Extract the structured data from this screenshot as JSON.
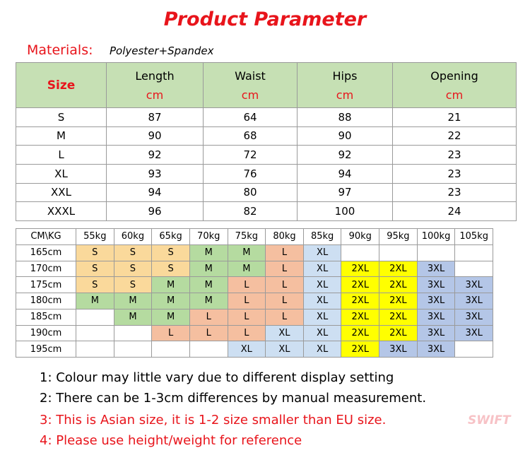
{
  "title": "Product Parameter",
  "materials": {
    "label": "Materials:",
    "value": "Polyester+Spandex"
  },
  "table": {
    "header": [
      "Size",
      "Length",
      "Waist",
      "Hips",
      "Opening"
    ],
    "unit": "cm",
    "rows": [
      [
        "S",
        87,
        64,
        88,
        21
      ],
      [
        "M",
        90,
        68,
        90,
        22
      ],
      [
        "L",
        92,
        72,
        92,
        23
      ],
      [
        "XL",
        93,
        76,
        94,
        23
      ],
      [
        "XXL",
        94,
        80,
        97,
        23
      ],
      [
        "XXXL",
        96,
        82,
        100,
        24
      ]
    ]
  },
  "size_chart": {
    "corner": "CM\\KG",
    "weights": [
      "55kg",
      "60kg",
      "65kg",
      "70kg",
      "75kg",
      "80kg",
      "85kg",
      "90kg",
      "95kg",
      "100kg",
      "105kg"
    ],
    "rows": [
      {
        "height": "165cm",
        "sizes": [
          "S",
          "S",
          "S",
          "M",
          "M",
          "L",
          "XL",
          null,
          null,
          null,
          null
        ]
      },
      {
        "height": "170cm",
        "sizes": [
          "S",
          "S",
          "S",
          "M",
          "M",
          "L",
          "XL",
          "2XL",
          "2XL",
          "3XL",
          null
        ]
      },
      {
        "height": "175cm",
        "sizes": [
          "S",
          "S",
          "M",
          "M",
          "L",
          "L",
          "XL",
          "2XL",
          "2XL",
          "3XL",
          "3XL"
        ]
      },
      {
        "height": "180cm",
        "sizes": [
          "M",
          "M",
          "M",
          "M",
          "L",
          "L",
          "XL",
          "2XL",
          "2XL",
          "3XL",
          "3XL"
        ]
      },
      {
        "height": "185cm",
        "sizes": [
          null,
          "M",
          "M",
          "L",
          "L",
          "L",
          "XL",
          "2XL",
          "2XL",
          "3XL",
          "3XL"
        ]
      },
      {
        "height": "190cm",
        "sizes": [
          null,
          null,
          "L",
          "L",
          "L",
          "XL",
          "XL",
          "2XL",
          "2XL",
          "3XL",
          "3XL"
        ]
      },
      {
        "height": "195cm",
        "sizes": [
          null,
          null,
          null,
          null,
          "XL",
          "XL",
          "XL",
          "2XL",
          "3XL",
          "3XL",
          null
        ]
      }
    ],
    "colors": {
      "S": "#fad99b",
      "M": "#b5dba0",
      "L": "#f5bfa0",
      "XL": "#cddff2",
      "2XL": "#ffff00",
      "3XL": "#b4c6e7"
    }
  },
  "notes": [
    {
      "text": "1: Colour may little vary due to different display setting",
      "color": "#000000"
    },
    {
      "text": "2: There can be 1-3cm differences by manual measurement.",
      "color": "#000000"
    },
    {
      "text": "3: This is Asian size, it is 1-2 size smaller than EU size.",
      "color": "#e8141b"
    },
    {
      "text": "4: Please use height/weight for reference",
      "color": "#e8141b"
    }
  ],
  "watermark": "SWIFT"
}
